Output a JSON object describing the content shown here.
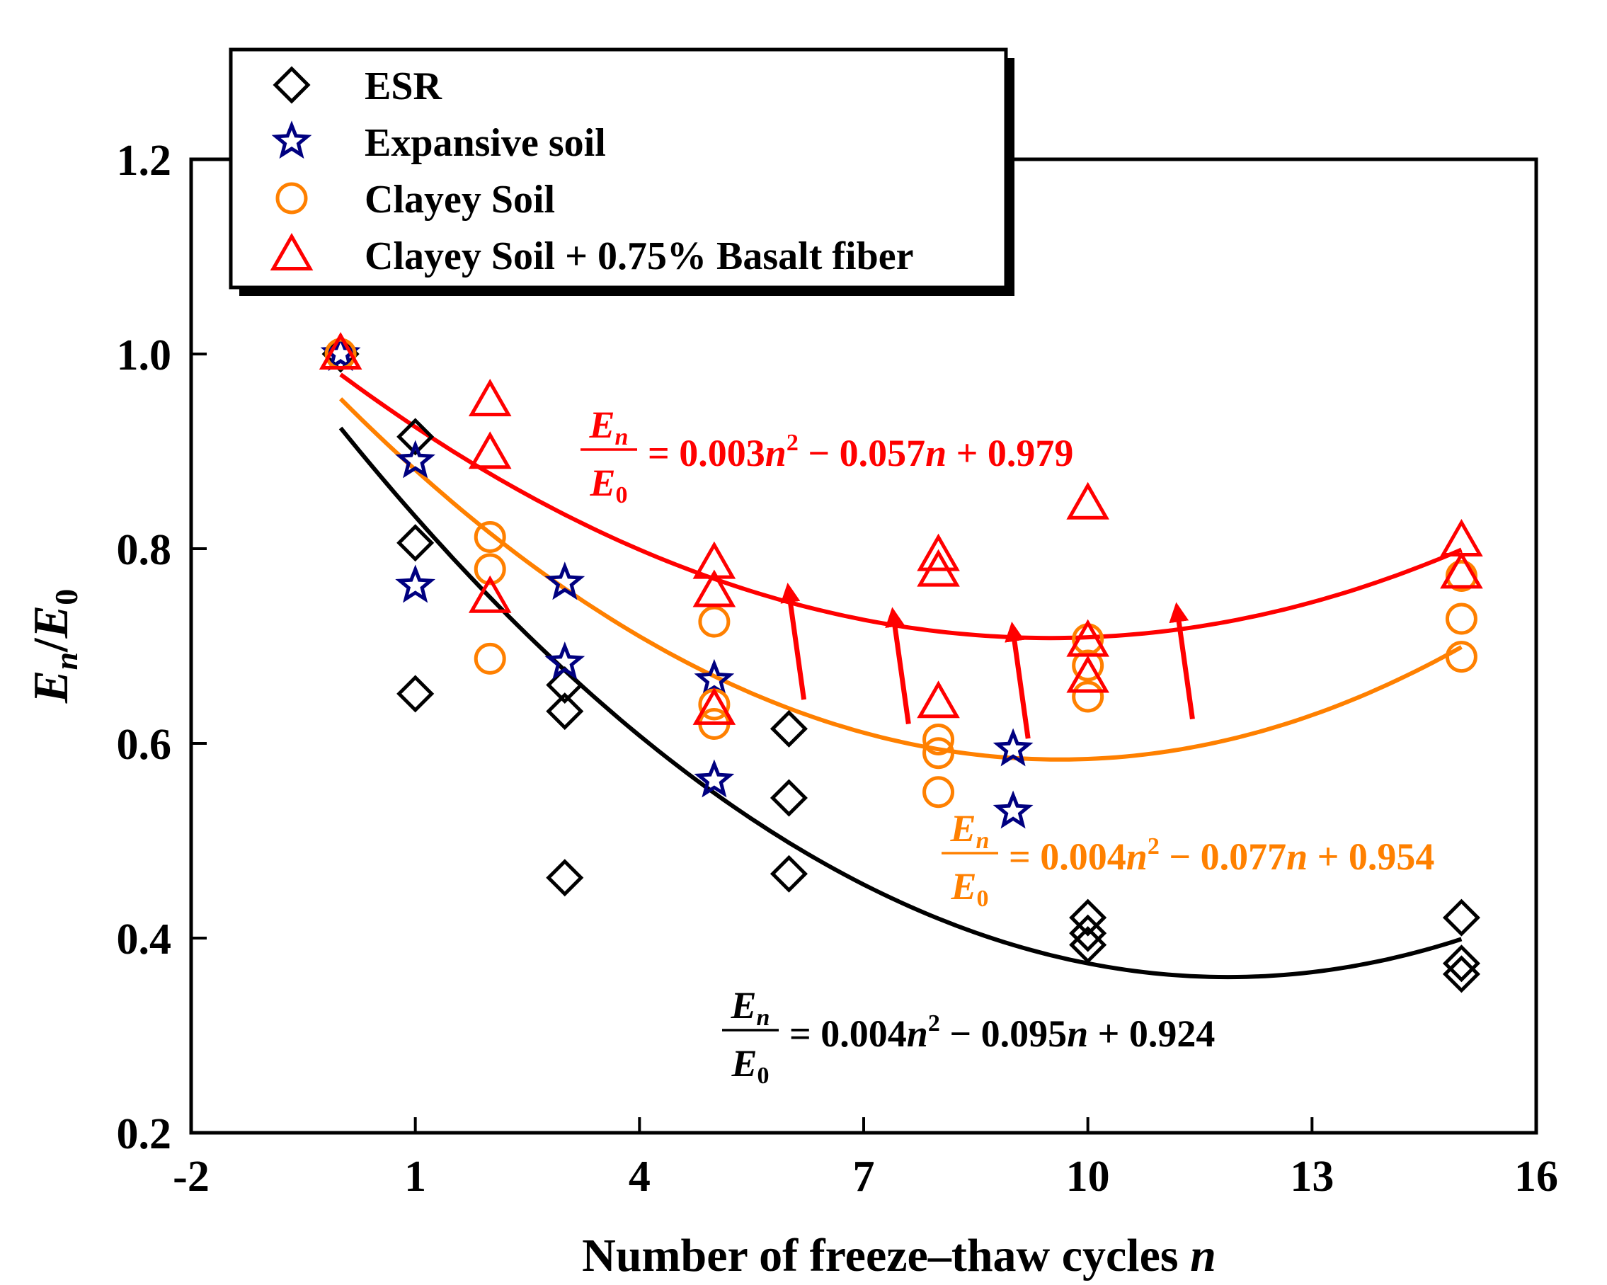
{
  "chart_data": {
    "type": "scatter",
    "title": "",
    "xlabel": "Number of freeze–thaw cycles",
    "xlabel_var": "n",
    "ylabel": {
      "E": "E",
      "n": "n",
      "slash": "/",
      "E0": "E",
      "zero": "0"
    },
    "xlim": [
      -2,
      16
    ],
    "ylim": [
      0.2,
      1.2
    ],
    "x_ticks": [
      -2,
      1,
      4,
      7,
      10,
      13,
      16
    ],
    "x_tick_labels": [
      "-2",
      "1",
      "4",
      "7",
      "10",
      "13",
      "16"
    ],
    "y_ticks": [
      0.2,
      0.4,
      0.6,
      0.8,
      1.0,
      1.2
    ],
    "y_tick_labels": [
      "0.2",
      "0.4",
      "0.6",
      "0.8",
      "1.0",
      "1.2"
    ],
    "legend_position": "top-left outside",
    "series": [
      {
        "name": "ESR",
        "marker": "diamond",
        "color": "#000000",
        "points": [
          [
            0,
            1.0
          ],
          [
            1,
            0.915
          ],
          [
            1,
            0.806
          ],
          [
            1,
            0.651
          ],
          [
            3,
            0.66
          ],
          [
            3,
            0.633
          ],
          [
            3,
            0.462
          ],
          [
            6,
            0.615
          ],
          [
            6,
            0.544
          ],
          [
            6,
            0.466
          ],
          [
            10,
            0.421
          ],
          [
            10,
            0.405
          ],
          [
            10,
            0.393
          ],
          [
            15,
            0.421
          ],
          [
            15,
            0.374
          ],
          [
            15,
            0.363
          ]
        ]
      },
      {
        "name": "Expansive soil",
        "marker": "star",
        "color": "#000080",
        "points": [
          [
            0,
            1.0
          ],
          [
            1,
            0.89
          ],
          [
            1,
            0.762
          ],
          [
            3,
            0.765
          ],
          [
            3,
            0.683
          ],
          [
            5,
            0.665
          ],
          [
            5,
            0.562
          ],
          [
            9,
            0.594
          ],
          [
            9,
            0.53
          ]
        ]
      },
      {
        "name": "Clayey Soil",
        "marker": "circle",
        "color": "#FF8000",
        "points": [
          [
            0,
            1.0
          ],
          [
            2,
            0.812
          ],
          [
            2,
            0.779
          ],
          [
            2,
            0.687
          ],
          [
            5,
            0.725
          ],
          [
            5,
            0.64
          ],
          [
            5,
            0.62
          ],
          [
            8,
            0.604
          ],
          [
            8,
            0.59
          ],
          [
            8,
            0.55
          ],
          [
            10,
            0.707
          ],
          [
            10,
            0.68
          ],
          [
            10,
            0.648
          ],
          [
            15,
            0.772
          ],
          [
            15,
            0.728
          ],
          [
            15,
            0.689
          ]
        ]
      },
      {
        "name": "Clayey Soil + 0.75% Basalt fiber",
        "marker": "triangle",
        "color": "#FF0000",
        "points": [
          [
            0,
            1.0
          ],
          [
            2,
            0.952
          ],
          [
            2,
            0.898
          ],
          [
            2,
            0.75
          ],
          [
            5,
            0.785
          ],
          [
            5,
            0.756
          ],
          [
            5,
            0.635
          ],
          [
            8,
            0.793
          ],
          [
            8,
            0.777
          ],
          [
            8,
            0.642
          ],
          [
            10,
            0.846
          ],
          [
            10,
            0.705
          ],
          [
            10,
            0.668
          ],
          [
            15,
            0.808
          ],
          [
            15,
            0.775
          ]
        ]
      }
    ],
    "fits": [
      {
        "name": "ESR fit",
        "color": "#000000",
        "a": 0.004,
        "b": -0.095,
        "c": 0.924,
        "x_range": [
          0,
          15
        ],
        "label": {
          "lhs_num": "E",
          "lhs_num_sub": "n",
          "lhs_den": "E",
          "lhs_den_sub": "0",
          "eq": "= 0.004",
          "n1": "n",
          "sup": "2",
          "mid": " − 0.095",
          "n2": "n",
          "end": " + 0.924"
        }
      },
      {
        "name": "Clayey Soil fit",
        "color": "#FF8000",
        "a": 0.004,
        "b": -0.077,
        "c": 0.954,
        "x_range": [
          0,
          15
        ],
        "label": {
          "lhs_num": "E",
          "lhs_num_sub": "n",
          "lhs_den": "E",
          "lhs_den_sub": "0",
          "eq": "= 0.004",
          "n1": "n",
          "sup": "2",
          "mid": " − 0.077",
          "n2": "n",
          "end": " + 0.954"
        }
      },
      {
        "name": "Basalt fiber fit",
        "color": "#FF0000",
        "a": 0.003,
        "b": -0.057,
        "c": 0.979,
        "x_range": [
          0,
          15
        ],
        "label": {
          "lhs_num": "E",
          "lhs_num_sub": "n",
          "lhs_den": "E",
          "lhs_den_sub": "0",
          "eq": "= 0.003",
          "n1": "n",
          "sup": "2",
          "mid": " − 0.057",
          "n2": "n",
          "end": " + 0.979"
        }
      }
    ],
    "annotation_arrows": [
      {
        "from": [
          6.2,
          0.645
        ],
        "to": [
          6.0,
          0.755
        ]
      },
      {
        "from": [
          7.6,
          0.62
        ],
        "to": [
          7.4,
          0.73
        ]
      },
      {
        "from": [
          9.2,
          0.605
        ],
        "to": [
          9.0,
          0.715
        ]
      },
      {
        "from": [
          11.4,
          0.625
        ],
        "to": [
          11.2,
          0.735
        ]
      }
    ],
    "arrow_color": "#FF0000"
  }
}
